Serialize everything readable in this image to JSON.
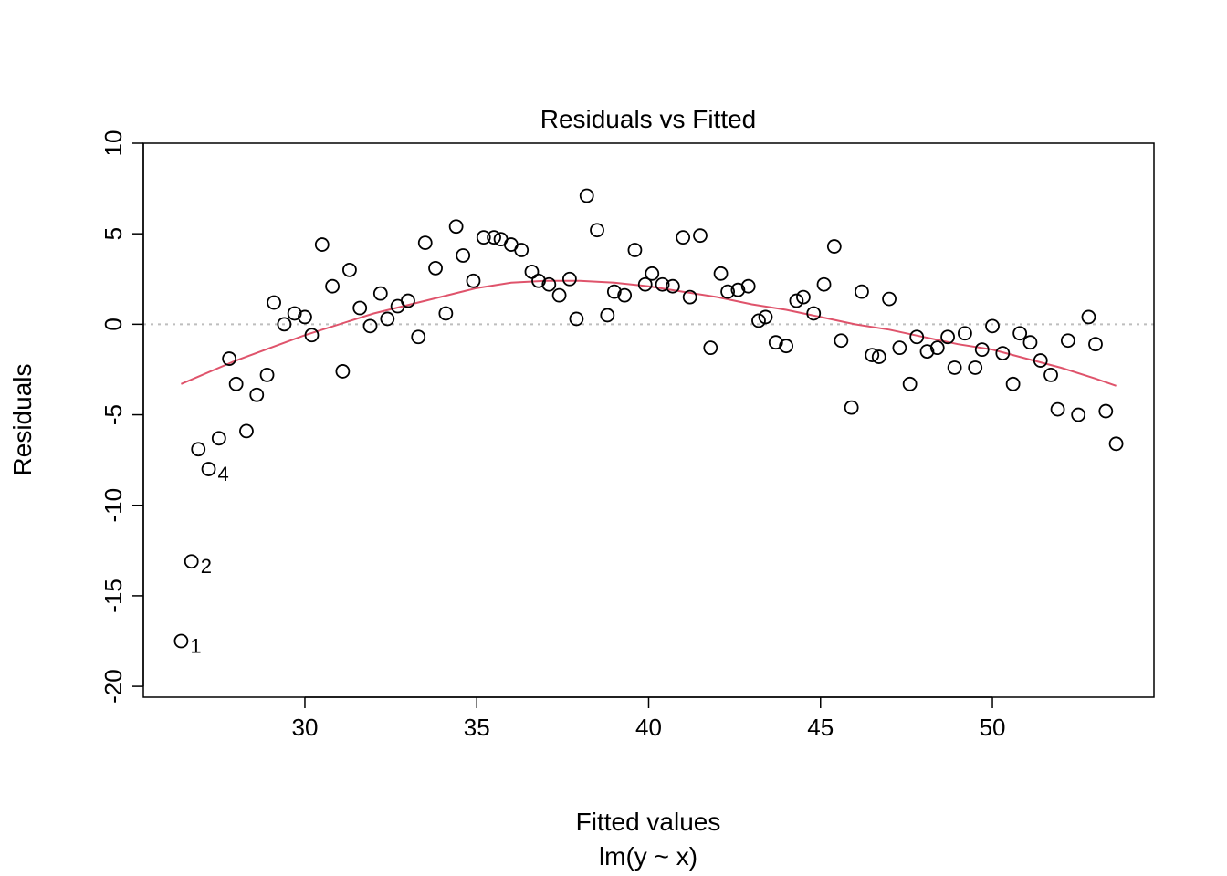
{
  "chart_data": {
    "type": "scatter",
    "title": "Residuals vs Fitted",
    "xlabel": "Fitted values",
    "sublabel": "lm(y ~ x)",
    "ylabel": "Residuals",
    "xlim": [
      25.3,
      54.7
    ],
    "ylim": [
      -20.6,
      10.0
    ],
    "x_ticks": [
      30,
      35,
      40,
      45,
      50
    ],
    "y_ticks": [
      -20,
      -15,
      -10,
      -5,
      0,
      5,
      10
    ],
    "x_tick_labels": [
      "30",
      "35",
      "40",
      "45",
      "50"
    ],
    "y_tick_labels": [
      "-20",
      "-15",
      "-10",
      "-5",
      "0",
      "5",
      "10"
    ],
    "reference_line_y": 0,
    "colors": {
      "points": "#000000",
      "smoother": "#DF536B",
      "reference": "#BEBEBE"
    },
    "points": [
      {
        "x": 26.4,
        "y": -17.5,
        "label": "1"
      },
      {
        "x": 26.7,
        "y": -13.1,
        "label": "2"
      },
      {
        "x": 26.9,
        "y": -6.9
      },
      {
        "x": 27.2,
        "y": -8.0,
        "label": "4"
      },
      {
        "x": 27.5,
        "y": -6.3
      },
      {
        "x": 27.8,
        "y": -1.9
      },
      {
        "x": 28.0,
        "y": -3.3
      },
      {
        "x": 28.3,
        "y": -5.9
      },
      {
        "x": 28.6,
        "y": -3.9
      },
      {
        "x": 28.9,
        "y": -2.8
      },
      {
        "x": 29.1,
        "y": 1.2
      },
      {
        "x": 29.4,
        "y": 0.0
      },
      {
        "x": 29.7,
        "y": 0.6
      },
      {
        "x": 30.0,
        "y": 0.4
      },
      {
        "x": 30.2,
        "y": -0.6
      },
      {
        "x": 30.5,
        "y": 4.4
      },
      {
        "x": 30.8,
        "y": 2.1
      },
      {
        "x": 31.1,
        "y": -2.6
      },
      {
        "x": 31.3,
        "y": 3.0
      },
      {
        "x": 31.6,
        "y": 0.9
      },
      {
        "x": 31.9,
        "y": -0.1
      },
      {
        "x": 32.2,
        "y": 1.7
      },
      {
        "x": 32.4,
        "y": 0.3
      },
      {
        "x": 32.7,
        "y": 1.0
      },
      {
        "x": 33.0,
        "y": 1.3
      },
      {
        "x": 33.3,
        "y": -0.7
      },
      {
        "x": 33.5,
        "y": 4.5
      },
      {
        "x": 33.8,
        "y": 3.1
      },
      {
        "x": 34.1,
        "y": 0.6
      },
      {
        "x": 34.4,
        "y": 5.4
      },
      {
        "x": 34.6,
        "y": 3.8
      },
      {
        "x": 34.9,
        "y": 2.4
      },
      {
        "x": 35.2,
        "y": 4.8
      },
      {
        "x": 35.5,
        "y": 4.8
      },
      {
        "x": 35.7,
        "y": 4.7
      },
      {
        "x": 36.0,
        "y": 4.4
      },
      {
        "x": 36.3,
        "y": 4.1
      },
      {
        "x": 36.6,
        "y": 2.9
      },
      {
        "x": 36.8,
        "y": 2.4
      },
      {
        "x": 37.1,
        "y": 2.2
      },
      {
        "x": 37.4,
        "y": 1.6
      },
      {
        "x": 37.7,
        "y": 2.5
      },
      {
        "x": 37.9,
        "y": 0.3
      },
      {
        "x": 38.2,
        "y": 7.1
      },
      {
        "x": 38.5,
        "y": 5.2
      },
      {
        "x": 38.8,
        "y": 0.5
      },
      {
        "x": 39.0,
        "y": 1.8
      },
      {
        "x": 39.3,
        "y": 1.6
      },
      {
        "x": 39.6,
        "y": 4.1
      },
      {
        "x": 39.9,
        "y": 2.2
      },
      {
        "x": 40.1,
        "y": 2.8
      },
      {
        "x": 40.4,
        "y": 2.2
      },
      {
        "x": 40.7,
        "y": 2.1
      },
      {
        "x": 41.0,
        "y": 4.8
      },
      {
        "x": 41.2,
        "y": 1.5
      },
      {
        "x": 41.5,
        "y": 4.9
      },
      {
        "x": 41.8,
        "y": -1.3
      },
      {
        "x": 42.1,
        "y": 2.8
      },
      {
        "x": 42.3,
        "y": 1.8
      },
      {
        "x": 42.6,
        "y": 1.9
      },
      {
        "x": 42.9,
        "y": 2.1
      },
      {
        "x": 43.2,
        "y": 0.2
      },
      {
        "x": 43.4,
        "y": 0.4
      },
      {
        "x": 43.7,
        "y": -1.0
      },
      {
        "x": 44.0,
        "y": -1.2
      },
      {
        "x": 44.3,
        "y": 1.3
      },
      {
        "x": 44.5,
        "y": 1.5
      },
      {
        "x": 44.8,
        "y": 0.6
      },
      {
        "x": 45.1,
        "y": 2.2
      },
      {
        "x": 45.4,
        "y": 4.3
      },
      {
        "x": 45.6,
        "y": -0.9
      },
      {
        "x": 45.9,
        "y": -4.6
      },
      {
        "x": 46.2,
        "y": 1.8
      },
      {
        "x": 46.5,
        "y": -1.7
      },
      {
        "x": 46.7,
        "y": -1.8
      },
      {
        "x": 47.0,
        "y": 1.4
      },
      {
        "x": 47.3,
        "y": -1.3
      },
      {
        "x": 47.6,
        "y": -3.3
      },
      {
        "x": 47.8,
        "y": -0.7
      },
      {
        "x": 48.1,
        "y": -1.5
      },
      {
        "x": 48.4,
        "y": -1.3
      },
      {
        "x": 48.7,
        "y": -0.7
      },
      {
        "x": 48.9,
        "y": -2.4
      },
      {
        "x": 49.2,
        "y": -0.5
      },
      {
        "x": 49.5,
        "y": -2.4
      },
      {
        "x": 49.7,
        "y": -1.4
      },
      {
        "x": 50.0,
        "y": -0.1
      },
      {
        "x": 50.3,
        "y": -1.6
      },
      {
        "x": 50.6,
        "y": -3.3
      },
      {
        "x": 50.8,
        "y": -0.5
      },
      {
        "x": 51.1,
        "y": -1.0
      },
      {
        "x": 51.4,
        "y": -2.0
      },
      {
        "x": 51.7,
        "y": -2.8
      },
      {
        "x": 51.9,
        "y": -4.7
      },
      {
        "x": 52.2,
        "y": -0.9
      },
      {
        "x": 52.5,
        "y": -5.0
      },
      {
        "x": 52.8,
        "y": 0.4
      },
      {
        "x": 53.0,
        "y": -1.1
      },
      {
        "x": 53.3,
        "y": -4.8
      },
      {
        "x": 53.6,
        "y": -6.6
      }
    ],
    "smoother": [
      {
        "x": 26.4,
        "y": -3.3
      },
      {
        "x": 28.0,
        "y": -2.0
      },
      {
        "x": 30.0,
        "y": -0.6
      },
      {
        "x": 32.0,
        "y": 0.6
      },
      {
        "x": 33.5,
        "y": 1.3
      },
      {
        "x": 35.0,
        "y": 2.0
      },
      {
        "x": 36.0,
        "y": 2.3
      },
      {
        "x": 37.0,
        "y": 2.4
      },
      {
        "x": 38.0,
        "y": 2.4
      },
      {
        "x": 39.0,
        "y": 2.3
      },
      {
        "x": 40.0,
        "y": 2.1
      },
      {
        "x": 41.0,
        "y": 1.8
      },
      {
        "x": 42.0,
        "y": 1.5
      },
      {
        "x": 43.0,
        "y": 1.1
      },
      {
        "x": 44.0,
        "y": 0.8
      },
      {
        "x": 45.0,
        "y": 0.4
      },
      {
        "x": 46.0,
        "y": 0.0
      },
      {
        "x": 47.0,
        "y": -0.3
      },
      {
        "x": 48.0,
        "y": -0.7
      },
      {
        "x": 49.0,
        "y": -1.1
      },
      {
        "x": 50.0,
        "y": -1.4
      },
      {
        "x": 51.0,
        "y": -1.9
      },
      {
        "x": 52.0,
        "y": -2.4
      },
      {
        "x": 53.0,
        "y": -3.0
      },
      {
        "x": 53.6,
        "y": -3.4
      }
    ]
  }
}
